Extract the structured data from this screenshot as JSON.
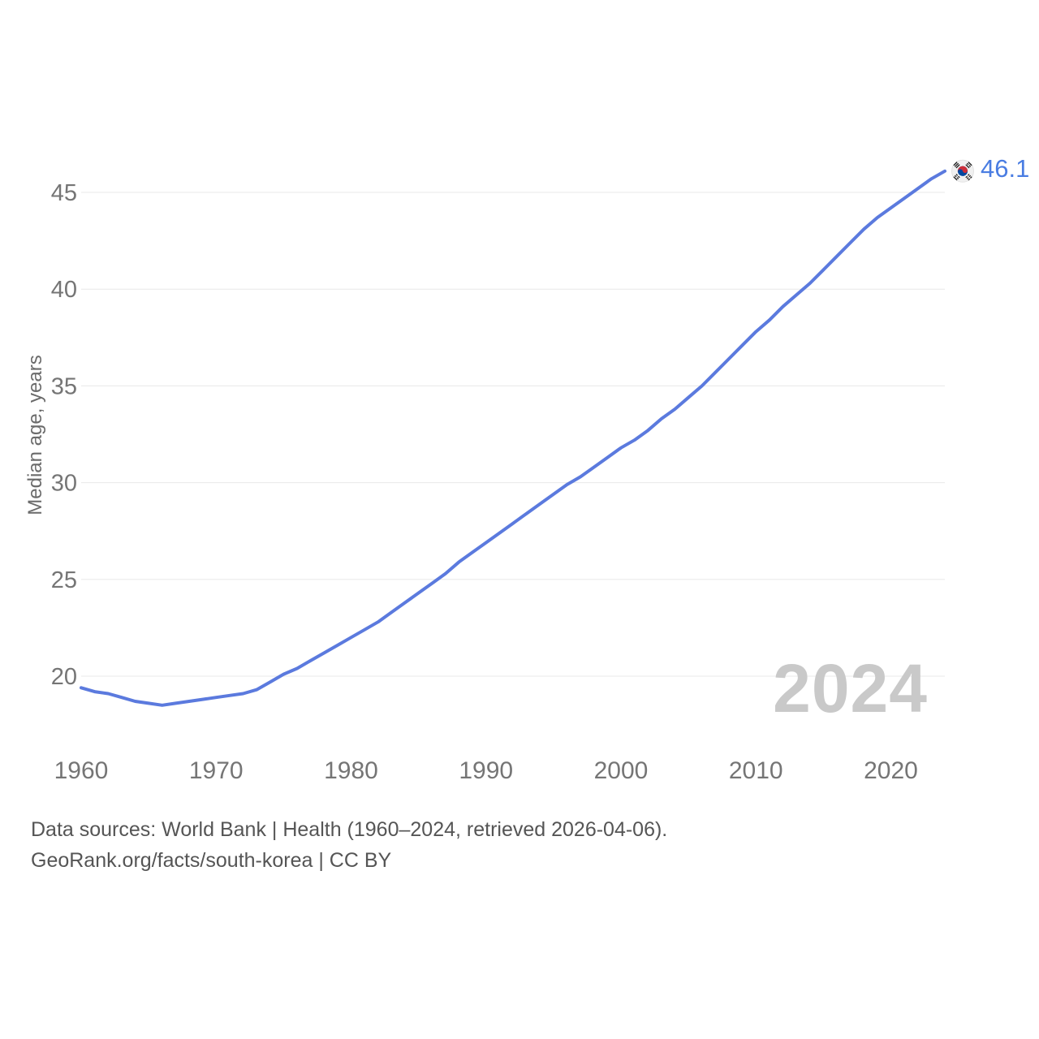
{
  "chart_data": {
    "type": "line",
    "title": "",
    "xlabel": "",
    "ylabel": "Median age, years",
    "grid": "horizontal-only",
    "legend": "none",
    "ylim": [
      18.2,
      47
    ],
    "xlim": [
      1960,
      2024
    ],
    "yticks": [
      20,
      25,
      30,
      35,
      40,
      45
    ],
    "xticks": [
      1960,
      1970,
      1980,
      1990,
      2000,
      2010,
      2020
    ],
    "series": [
      {
        "name": "South Korea — median age",
        "color": "#5b7ade",
        "end_marker": "south-korea-flag",
        "end_label": "46.1",
        "x": [
          1960,
          1961,
          1962,
          1963,
          1964,
          1965,
          1966,
          1967,
          1968,
          1969,
          1970,
          1971,
          1972,
          1973,
          1974,
          1975,
          1976,
          1977,
          1978,
          1979,
          1980,
          1981,
          1982,
          1983,
          1984,
          1985,
          1986,
          1987,
          1988,
          1989,
          1990,
          1991,
          1992,
          1993,
          1994,
          1995,
          1996,
          1997,
          1998,
          1999,
          2000,
          2001,
          2002,
          2003,
          2004,
          2005,
          2006,
          2007,
          2008,
          2009,
          2010,
          2011,
          2012,
          2013,
          2014,
          2015,
          2016,
          2017,
          2018,
          2019,
          2020,
          2021,
          2022,
          2023,
          2024
        ],
        "values": [
          19.4,
          19.2,
          19.1,
          18.9,
          18.7,
          18.6,
          18.5,
          18.6,
          18.7,
          18.8,
          18.9,
          19.0,
          19.1,
          19.3,
          19.7,
          20.1,
          20.4,
          20.8,
          21.2,
          21.6,
          22.0,
          22.4,
          22.8,
          23.3,
          23.8,
          24.3,
          24.8,
          25.3,
          25.9,
          26.4,
          26.9,
          27.4,
          27.9,
          28.4,
          28.9,
          29.4,
          29.9,
          30.3,
          30.8,
          31.3,
          31.8,
          32.2,
          32.7,
          33.3,
          33.8,
          34.4,
          35.0,
          35.7,
          36.4,
          37.1,
          37.8,
          38.4,
          39.1,
          39.7,
          40.3,
          41.0,
          41.7,
          42.4,
          43.1,
          43.7,
          44.2,
          44.7,
          45.2,
          45.7,
          46.1
        ]
      }
    ]
  },
  "end_label": {
    "text": "46.1",
    "color": "#4a7de2"
  },
  "watermark": {
    "text": "2024",
    "color": "#c9c9c9"
  },
  "footer": {
    "line1": "Data sources: World Bank | Health (1960–2024, retrieved 2026-04-06).",
    "line2": "GeoRank.org/facts/south-korea | CC BY"
  },
  "colors": {
    "background": "#ffffff",
    "line": "#5b7ade",
    "grid": "#e8e8e8",
    "tick_label": "#757575",
    "axis_title": "#6b6b6b",
    "footer_text": "#555555",
    "watermark": "#c9c9c9",
    "flag_red": "#cd2e3a",
    "flag_blue": "#0047a0",
    "flag_black": "#1d1d1d"
  }
}
